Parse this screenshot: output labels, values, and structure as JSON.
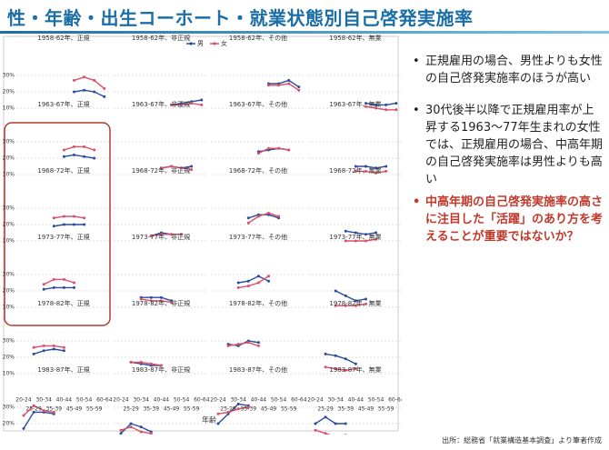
{
  "chart_data": {
    "type": "line",
    "title": "性・年齢・出生コーホート・就業状態別自己啓発実施率",
    "x_label": "年齢",
    "source": "出所：総務省「就業構造基本調査」より筆者作成",
    "categories": [
      "20-24",
      "25-29",
      "30-34",
      "35-39",
      "40-44",
      "45-49",
      "50-54",
      "55-59",
      "60-64"
    ],
    "legend": [
      {
        "name": "男",
        "color": "#2b4c9b"
      },
      {
        "name": "女",
        "color": "#d9506a"
      }
    ],
    "ylim": [
      5,
      35
    ],
    "yticks": [
      {
        "value": 10,
        "label": "10%"
      },
      {
        "value": 20,
        "label": "20%"
      },
      {
        "value": 30,
        "label": "30%"
      }
    ],
    "grid": true,
    "panels": [
      {
        "title": "1958-62年、正規",
        "series": [
          {
            "values": [
              null,
              null,
              null,
              null,
              null,
              20,
              21,
              20,
              17
            ]
          },
          {
            "values": [
              null,
              null,
              null,
              null,
              null,
              27,
              29,
              27,
              22
            ]
          }
        ]
      },
      {
        "title": "1958-62年、非正規",
        "series": [
          {
            "values": [
              null,
              null,
              null,
              null,
              null,
              12,
              13,
              14,
              15
            ]
          },
          {
            "values": [
              null,
              null,
              null,
              null,
              null,
              12,
              12,
              13,
              12
            ]
          }
        ]
      },
      {
        "title": "1958-62年、その他",
        "series": [
          {
            "values": [
              null,
              null,
              null,
              null,
              null,
              25,
              25,
              27,
              23
            ]
          },
          {
            "values": [
              null,
              null,
              null,
              null,
              null,
              24,
              24,
              25,
              21
            ]
          }
        ]
      },
      {
        "title": "1958-62年、無業",
        "series": [
          {
            "values": [
              null,
              null,
              null,
              null,
              null,
              13,
              12,
              12,
              13
            ]
          },
          {
            "values": [
              null,
              null,
              null,
              null,
              null,
              11,
              10,
              9,
              9
            ]
          }
        ]
      },
      {
        "title": "1963-67年、正規",
        "series": [
          {
            "values": [
              null,
              null,
              null,
              null,
              21,
              22,
              21,
              20,
              null
            ]
          },
          {
            "values": [
              null,
              null,
              null,
              null,
              25,
              27,
              27,
              25,
              null
            ]
          }
        ]
      },
      {
        "title": "1963-67年、非正規",
        "series": [
          {
            "values": [
              null,
              null,
              null,
              null,
              14,
              15,
              14,
              15,
              null
            ]
          },
          {
            "values": [
              null,
              null,
              null,
              null,
              14,
              15,
              14,
              13,
              null
            ]
          }
        ]
      },
      {
        "title": "1963-67年、その他",
        "series": [
          {
            "values": [
              null,
              null,
              null,
              null,
              24,
              25,
              26,
              25,
              null
            ]
          },
          {
            "values": [
              null,
              null,
              null,
              null,
              23,
              26,
              26,
              25,
              null
            ]
          }
        ]
      },
      {
        "title": "1963-67年、無業",
        "series": [
          {
            "values": [
              null,
              null,
              null,
              null,
              15,
              15,
              14,
              15,
              null
            ]
          },
          {
            "values": [
              null,
              null,
              null,
              null,
              12,
              12,
              11,
              12,
              null
            ]
          }
        ]
      },
      {
        "title": "1968-72年、正規",
        "series": [
          {
            "values": [
              null,
              null,
              null,
              19,
              20,
              20,
              20,
              null,
              null
            ]
          },
          {
            "values": [
              null,
              null,
              null,
              24,
              25,
              25,
              24,
              null,
              null
            ]
          }
        ]
      },
      {
        "title": "1968-72年、非正規",
        "series": [
          {
            "values": [
              null,
              null,
              null,
              13,
              15,
              14,
              14,
              null,
              null
            ]
          },
          {
            "values": [
              null,
              null,
              null,
              13,
              14,
              14,
              14,
              null,
              null
            ]
          }
        ]
      },
      {
        "title": "1968-72年、その他",
        "series": [
          {
            "values": [
              null,
              null,
              null,
              24,
              26,
              26,
              24,
              null,
              null
            ]
          },
          {
            "values": [
              null,
              null,
              null,
              21,
              25,
              27,
              25,
              null,
              null
            ]
          }
        ]
      },
      {
        "title": "1968-72年、無業",
        "series": [
          {
            "values": [
              null,
              null,
              null,
              16,
              15,
              14,
              15,
              null,
              null
            ]
          },
          {
            "values": [
              null,
              null,
              null,
              10,
              10,
              10,
              11,
              null,
              null
            ]
          }
        ]
      },
      {
        "title": "1973-77年、正規",
        "series": [
          {
            "values": [
              null,
              null,
              21,
              22,
              22,
              22,
              null,
              null,
              null
            ]
          },
          {
            "values": [
              null,
              null,
              24,
              27,
              27,
              25,
              null,
              null,
              null
            ]
          }
        ]
      },
      {
        "title": "1973-77年、非正規",
        "series": [
          {
            "values": [
              null,
              null,
              16,
              16,
              16,
              14,
              null,
              null,
              null
            ]
          },
          {
            "values": [
              null,
              null,
              15,
              14,
              14,
              13,
              null,
              null,
              null
            ]
          }
        ]
      },
      {
        "title": "1973-77年、その他",
        "series": [
          {
            "values": [
              null,
              null,
              25,
              26,
              29,
              26,
              null,
              null,
              null
            ]
          },
          {
            "values": [
              null,
              null,
              22,
              23,
              25,
              29,
              null,
              null,
              null
            ]
          }
        ]
      },
      {
        "title": "1973-77年、無業",
        "series": [
          {
            "values": [
              null,
              null,
              20,
              17,
              14,
              15,
              null,
              null,
              null
            ]
          },
          {
            "values": [
              null,
              null,
              11,
              11,
              11,
              12,
              null,
              null,
              null
            ]
          }
        ]
      },
      {
        "title": "1978-82年、正規",
        "series": [
          {
            "values": [
              null,
              22,
              24,
              25,
              24,
              null,
              null,
              null,
              null
            ]
          },
          {
            "values": [
              null,
              26,
              27,
              27,
              26,
              null,
              null,
              null,
              null
            ]
          }
        ]
      },
      {
        "title": "1978-82年、非正規",
        "series": [
          {
            "values": [
              null,
              17,
              16,
              15,
              15,
              null,
              null,
              null,
              null
            ]
          },
          {
            "values": [
              null,
              17,
              17,
              16,
              15,
              null,
              null,
              null,
              null
            ]
          }
        ]
      },
      {
        "title": "1978-82年、その他",
        "series": [
          {
            "values": [
              null,
              28,
              27,
              30,
              29,
              null,
              null,
              null,
              null
            ]
          },
          {
            "values": [
              null,
              27,
              28,
              29,
              27,
              null,
              null,
              null,
              null
            ]
          }
        ]
      },
      {
        "title": "1978-82年、無業",
        "series": [
          {
            "values": [
              null,
              22,
              21,
              19,
              16,
              null,
              null,
              null,
              null
            ]
          },
          {
            "values": [
              null,
              14,
              13,
              12,
              13,
              null,
              null,
              null,
              null
            ]
          }
        ]
      },
      {
        "title": "1983-87年、正規",
        "series": [
          {
            "values": [
              17,
              27,
              27,
              26,
              null,
              null,
              null,
              null,
              null
            ]
          },
          {
            "values": [
              25,
              31,
              28,
              27,
              null,
              null,
              null,
              null,
              null
            ]
          }
        ]
      },
      {
        "title": "1983-87年、非正規",
        "series": [
          {
            "values": [
              14,
              20,
              18,
              15,
              null,
              null,
              null,
              null,
              null
            ]
          },
          {
            "values": [
              16,
              18,
              15,
              14,
              null,
              null,
              null,
              null,
              null
            ]
          }
        ]
      },
      {
        "title": "1983-87年、その他",
        "series": [
          {
            "values": [
              20,
              26,
              32,
              31,
              null,
              null,
              null,
              null,
              null
            ]
          },
          {
            "values": [
              26,
              27,
              29,
              30,
              null,
              null,
              null,
              null,
              null
            ]
          }
        ]
      },
      {
        "title": "1983-87年、無業",
        "series": [
          {
            "values": [
              20,
              24,
              20,
              20,
              null,
              null,
              null,
              null,
              null
            ]
          },
          {
            "values": [
              16,
              14,
              12,
              13,
              null,
              null,
              null,
              null,
              null
            ]
          }
        ]
      }
    ]
  },
  "notes": [
    "正規雇用の場合、男性よりも女性の自己啓発実施率のほうが高い",
    "30代後半以降で正規雇用率が上昇する1963～77年生まれの女性では、正規雇用の場合、中高年期の自己啓発実施率は男性よりも高い",
    "中高年期の自己啓発実施率の高さに注目した「活躍」のあり方を考えることが重要ではないか？"
  ]
}
